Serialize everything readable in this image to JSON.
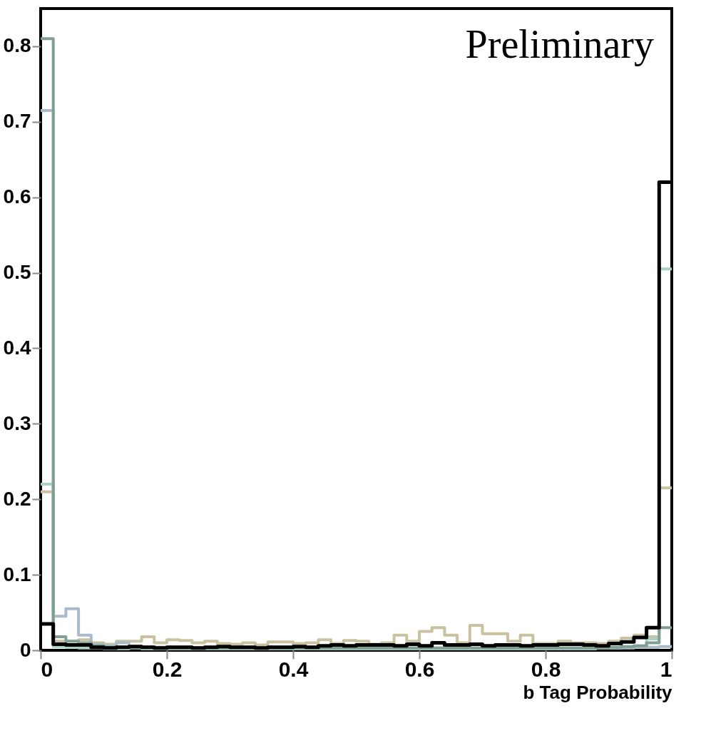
{
  "chart_data": {
    "type": "histogram",
    "xlabel": "b Tag Probability",
    "annotations": [
      "Preliminary"
    ],
    "bins": [
      0,
      0.02,
      0.04,
      0.06,
      0.08,
      0.1,
      0.12,
      0.14,
      0.16,
      0.18,
      0.2,
      0.22,
      0.24,
      0.26,
      0.28,
      0.3,
      0.32,
      0.34,
      0.36,
      0.38,
      0.4,
      0.42,
      0.44,
      0.46,
      0.48,
      0.5,
      0.52,
      0.54,
      0.56,
      0.58,
      0.6,
      0.62,
      0.64,
      0.66,
      0.68,
      0.7,
      0.72,
      0.74,
      0.76,
      0.78,
      0.8,
      0.82,
      0.84,
      0.86,
      0.88,
      0.9,
      0.92,
      0.94,
      0.96,
      0.98,
      1
    ],
    "xlim": [
      0,
      1
    ],
    "xticks": [
      0,
      0.2,
      0.4,
      0.6,
      0.8,
      1
    ],
    "ylim": [
      0,
      0.85
    ],
    "yticks": [
      0,
      0.1,
      0.2,
      0.3,
      0.4,
      0.5,
      0.6,
      0.7,
      0.8
    ],
    "grid": false,
    "series": [
      {
        "color": "#c8c2a0",
        "values": [
          0.21,
          0.012,
          0.012,
          0.014,
          0.01,
          0.008,
          0.012,
          0.012,
          0.018,
          0.01,
          0.014,
          0.013,
          0.01,
          0.012,
          0.009,
          0.008,
          0.01,
          0.007,
          0.011,
          0.011,
          0.009,
          0.01,
          0.014,
          0.009,
          0.013,
          0.012,
          0.008,
          0.01,
          0.02,
          0.012,
          0.025,
          0.03,
          0.02,
          0.01,
          0.033,
          0.022,
          0.022,
          0.012,
          0.02,
          0.009,
          0.009,
          0.012,
          0.01,
          0.01,
          0.009,
          0.012,
          0.016,
          0.02,
          0.018,
          0.215
        ]
      },
      {
        "color": "#a8d0c4",
        "values": [
          0.22,
          0.005,
          0.004,
          0.003,
          0.003,
          0.002,
          0.002,
          0.003,
          0.002,
          0.002,
          0.002,
          0.002,
          0.002,
          0.002,
          0.002,
          0.002,
          0.002,
          0.002,
          0.002,
          0.002,
          0.002,
          0.002,
          0.002,
          0.002,
          0.002,
          0.002,
          0.002,
          0.002,
          0.002,
          0.002,
          0.002,
          0.002,
          0.002,
          0.002,
          0.002,
          0.002,
          0.002,
          0.002,
          0.002,
          0.002,
          0.002,
          0.002,
          0.002,
          0.002,
          0.003,
          0.003,
          0.004,
          0.006,
          0.015,
          0.505
        ]
      },
      {
        "color": "#aabac8",
        "values": [
          0.715,
          0.045,
          0.055,
          0.02,
          0.008,
          0.006,
          0.01,
          0.005,
          0.004,
          0.004,
          0.003,
          0.003,
          0.003,
          0.003,
          0.003,
          0.003,
          0.003,
          0.003,
          0.003,
          0.003,
          0.003,
          0.003,
          0.003,
          0.003,
          0.003,
          0.003,
          0.003,
          0.003,
          0.003,
          0.003,
          0.003,
          0.003,
          0.003,
          0.003,
          0.003,
          0.003,
          0.003,
          0.003,
          0.003,
          0.003,
          0.003,
          0.003,
          0.003,
          0.003,
          0.003,
          0.003,
          0.003,
          0.004,
          0.004,
          0.005
        ]
      },
      {
        "color": "#7f9f94",
        "values": [
          0.81,
          0.018,
          0.012,
          0.01,
          0.006,
          0.004,
          0.004,
          0.004,
          0.004,
          0.003,
          0.003,
          0.003,
          0.003,
          0.003,
          0.003,
          0.003,
          0.003,
          0.003,
          0.003,
          0.003,
          0.003,
          0.003,
          0.003,
          0.003,
          0.003,
          0.003,
          0.003,
          0.003,
          0.003,
          0.003,
          0.003,
          0.003,
          0.003,
          0.003,
          0.003,
          0.003,
          0.003,
          0.003,
          0.003,
          0.003,
          0.003,
          0.003,
          0.003,
          0.003,
          0.003,
          0.004,
          0.005,
          0.006,
          0.01,
          0.03
        ]
      },
      {
        "color": "#000000",
        "values": [
          0.035,
          0.008,
          0.007,
          0.007,
          0.004,
          0.003,
          0.004,
          0.005,
          0.004,
          0.003,
          0.004,
          0.004,
          0.003,
          0.004,
          0.005,
          0.004,
          0.004,
          0.003,
          0.004,
          0.004,
          0.005,
          0.004,
          0.006,
          0.007,
          0.006,
          0.007,
          0.007,
          0.007,
          0.006,
          0.008,
          0.006,
          0.01,
          0.007,
          0.007,
          0.008,
          0.006,
          0.007,
          0.007,
          0.006,
          0.007,
          0.007,
          0.008,
          0.008,
          0.007,
          0.006,
          0.009,
          0.011,
          0.017,
          0.03,
          0.62
        ]
      }
    ]
  }
}
